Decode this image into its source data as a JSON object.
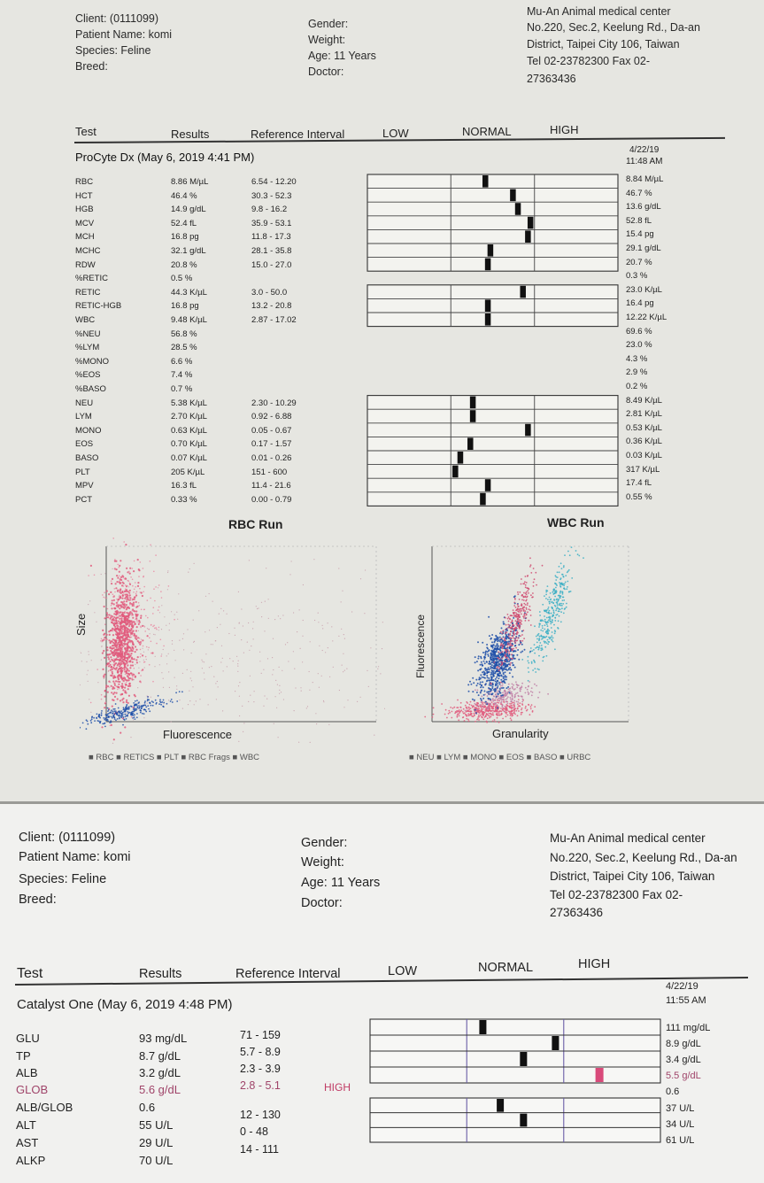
{
  "colors": {
    "rbc": "#e05a7c",
    "retics": "#cf3a64",
    "blue": "#1f4fa8",
    "cyan": "#3aaec4",
    "high": "#d94a7a"
  },
  "report1": {
    "header": {
      "client": "Client:  (0111099)",
      "patient": "Patient Name: komi",
      "species": "Species: Feline",
      "breed": "Breed:",
      "gender": "Gender:",
      "weight": "Weight:",
      "age": "Age: 11 Years",
      "doctor": "Doctor:",
      "clinic_line1": "Mu-An Animal medical center",
      "clinic_line2": "No.220, Sec.2, Keelung Rd., Da-an",
      "clinic_line3": "District, Taipei City 106, Taiwan",
      "clinic_line4": "Tel 02-23782300  Fax 02-",
      "clinic_line5": "27363436"
    },
    "columns": {
      "test": "Test",
      "results": "Results",
      "ref": "Reference Interval",
      "low": "LOW",
      "normal": "NORMAL",
      "high": "HIGH"
    },
    "section": "ProCyte Dx (May 6, 2019 4:41 PM)",
    "prev_date": "4/22/19",
    "prev_time": "11:48 AM",
    "rows": [
      {
        "test": "RBC",
        "result": "8.86 M/µL",
        "ref": "6.54 - 12.20",
        "prev": "8.84 M/µL",
        "marker": 0.47
      },
      {
        "test": "HCT",
        "result": "46.4 %",
        "ref": "30.3 - 52.3",
        "prev": "46.7 %",
        "marker": 0.58
      },
      {
        "test": "HGB",
        "result": "14.9 g/dL",
        "ref": "9.8 - 16.2",
        "prev": "13.6 g/dL",
        "marker": 0.6
      },
      {
        "test": "MCV",
        "result": "52.4 fL",
        "ref": "35.9 - 53.1",
        "prev": "52.8 fL",
        "marker": 0.65
      },
      {
        "test": "MCH",
        "result": "16.8 pg",
        "ref": "11.8 - 17.3",
        "prev": "15.4 pg",
        "marker": 0.64
      },
      {
        "test": "MCHC",
        "result": "32.1 g/dL",
        "ref": "28.1 - 35.8",
        "prev": "29.1 g/dL",
        "marker": 0.49
      },
      {
        "test": "RDW",
        "result": "20.8 %",
        "ref": "15.0 - 27.0",
        "prev": "20.7 %",
        "marker": 0.48
      },
      {
        "test": "%RETIC",
        "result": "0.5 %",
        "ref": "",
        "prev": "0.3 %"
      },
      {
        "test": "RETIC",
        "result": "44.3 K/µL",
        "ref": "3.0 - 50.0",
        "prev": "23.0 K/µL",
        "marker": 0.62
      },
      {
        "test": "RETIC-HGB",
        "result": "16.8 pg",
        "ref": "13.2 - 20.8",
        "prev": "16.4 pg",
        "marker": 0.48
      },
      {
        "test": "WBC",
        "result": "9.48 K/µL",
        "ref": "2.87 - 17.02",
        "prev": "12.22 K/µL",
        "marker": 0.48
      },
      {
        "test": "%NEU",
        "result": "56.8 %",
        "ref": "",
        "prev": "69.6 %"
      },
      {
        "test": "%LYM",
        "result": "28.5 %",
        "ref": "",
        "prev": "23.0 %"
      },
      {
        "test": "%MONO",
        "result": "6.6 %",
        "ref": "",
        "prev": "4.3 %"
      },
      {
        "test": "%EOS",
        "result": "7.4 %",
        "ref": "",
        "prev": "2.9 %"
      },
      {
        "test": "%BASO",
        "result": "0.7 %",
        "ref": "",
        "prev": "0.2 %"
      },
      {
        "test": "NEU",
        "result": "5.38 K/µL",
        "ref": "2.30 - 10.29",
        "prev": "8.49 K/µL",
        "marker": 0.42
      },
      {
        "test": "LYM",
        "result": "2.70 K/µL",
        "ref": "0.92 - 6.88",
        "prev": "2.81 K/µL",
        "marker": 0.42
      },
      {
        "test": "MONO",
        "result": "0.63 K/µL",
        "ref": "0.05 - 0.67",
        "prev": "0.53 K/µL",
        "marker": 0.64
      },
      {
        "test": "EOS",
        "result": "0.70 K/µL",
        "ref": "0.17 - 1.57",
        "prev": "0.36 K/µL",
        "marker": 0.41
      },
      {
        "test": "BASO",
        "result": "0.07 K/µL",
        "ref": "0.01 - 0.26",
        "prev": "0.03 K/µL",
        "marker": 0.37
      },
      {
        "test": "PLT",
        "result": "205 K/µL",
        "ref": "151 - 600",
        "prev": "317 K/µL",
        "marker": 0.35
      },
      {
        "test": "MPV",
        "result": "16.3 fL",
        "ref": "11.4 - 21.6",
        "prev": "17.4 fL",
        "marker": 0.48
      },
      {
        "test": "PCT",
        "result": "0.33 %",
        "ref": "0.00 - 0.79",
        "prev": "0.55 %",
        "marker": 0.46
      }
    ],
    "rbc_run": {
      "title": "RBC Run",
      "xlabel": "Fluorescence",
      "ylabel": "Size",
      "legend": "■ RBC  ■ RETICS  ■ PLT  ■ RBC Frags  ■ WBC"
    },
    "wbc_run": {
      "title": "WBC Run",
      "xlabel": "Granularity",
      "ylabel": "Fluorescence",
      "legend": "■ NEU  ■ LYM  ■ MONO  ■ EOS  ■ BASO  ■ URBC"
    }
  },
  "report2": {
    "header": {
      "client": "Client:  (0111099)",
      "patient": "Patient Name: komi",
      "species": "Species: Feline",
      "breed": "Breed:",
      "gender": "Gender:",
      "weight": "Weight:",
      "age": "Age: 11 Years",
      "doctor": "Doctor:",
      "clinic_line1": "Mu-An Animal medical center",
      "clinic_line2": "No.220, Sec.2, Keelung Rd., Da-an",
      "clinic_line3": "District, Taipei City 106, Taiwan",
      "clinic_line4": "Tel 02-23782300  Fax 02-",
      "clinic_line5": "27363436"
    },
    "columns": {
      "test": "Test",
      "results": "Results",
      "ref": "Reference Interval",
      "low": "LOW",
      "normal": "NORMAL",
      "high": "HIGH"
    },
    "section": "Catalyst One (May 6, 2019 4:48 PM)",
    "prev_date": "4/22/19",
    "prev_time": "11:55 AM",
    "rows": [
      {
        "test": "GLU",
        "result": "93 mg/dL",
        "ref": "71 - 159",
        "flag": "",
        "prev": "111 mg/dL",
        "marker": 0.39
      },
      {
        "test": "TP",
        "result": "8.7 g/dL",
        "ref": "5.7 - 8.9",
        "flag": "",
        "prev": "8.9 g/dL",
        "marker": 0.64
      },
      {
        "test": "ALB",
        "result": "3.2 g/dL",
        "ref": "2.3 - 3.9",
        "flag": "",
        "prev": "3.4 g/dL",
        "marker": 0.53
      },
      {
        "test": "GLOB",
        "result": "5.6 g/dL",
        "ref": "2.8 - 5.1",
        "flag": "HIGH",
        "prev": "5.5 g/dL",
        "marker": 0.79
      },
      {
        "test": "ALB/GLOB",
        "result": "0.6",
        "ref": "",
        "flag": "",
        "prev": "0.6"
      },
      {
        "test": "ALT",
        "result": "55 U/L",
        "ref": "12 - 130",
        "flag": "",
        "prev": "37 U/L",
        "marker": 0.45
      },
      {
        "test": "AST",
        "result": "29 U/L",
        "ref": "0 - 48",
        "flag": "",
        "prev": "34 U/L",
        "marker": 0.53
      },
      {
        "test": "ALKP",
        "result": "70 U/L",
        "ref": "14 - 111",
        "flag": "",
        "prev": "61 U/L"
      }
    ]
  }
}
